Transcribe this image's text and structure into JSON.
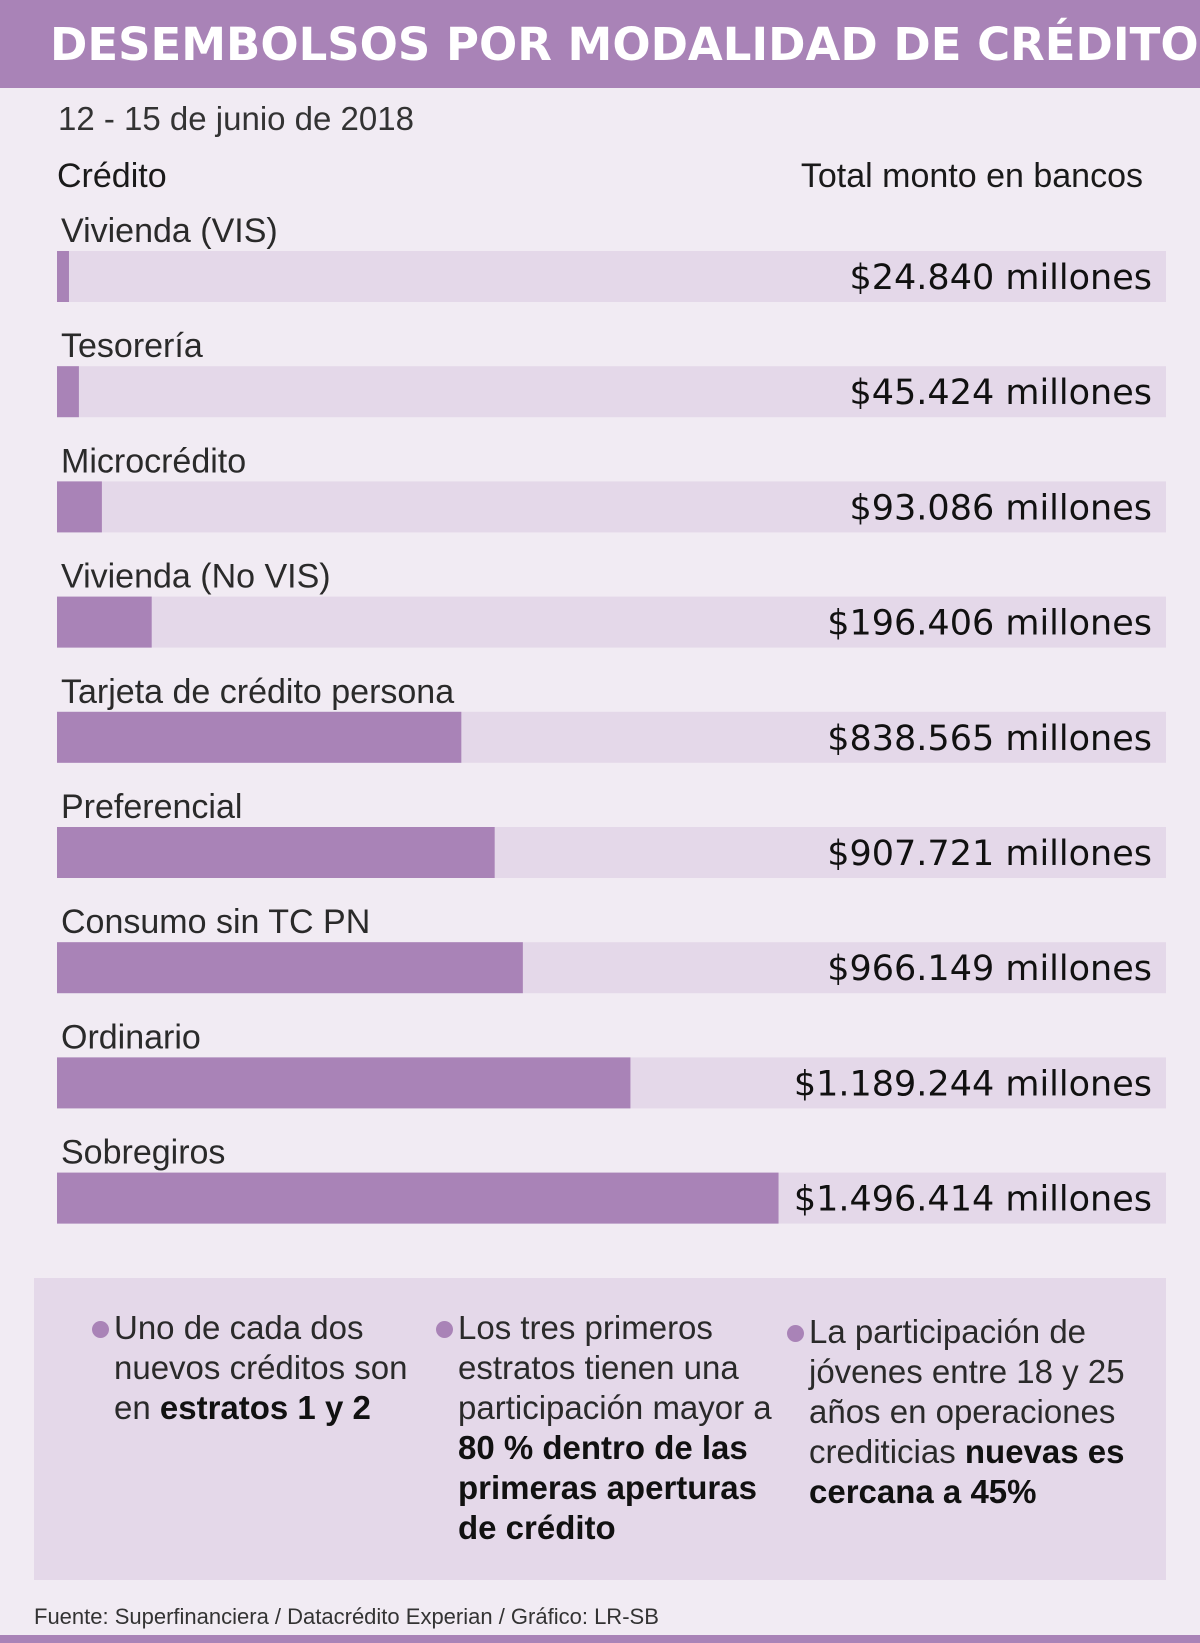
{
  "header": {
    "title": "DESEMBOLSOS POR MODALIDAD DE CRÉDITO"
  },
  "subtitle": "12 - 15 de junio de 2018",
  "columns": {
    "left": "Crédito",
    "right": "Total monto en bancos"
  },
  "colors": {
    "bar": "#a983b7",
    "track": "#e4d8e9",
    "header": "#a983b7"
  },
  "chart_data": {
    "type": "bar",
    "orientation": "horizontal",
    "categories": [
      "Vivienda (VIS)",
      "Tesorería",
      "Microcrédito",
      "Vivienda (No VIS)",
      "Tarjeta de crédito persona",
      "Preferencial",
      "Consumo sin TC PN",
      "Ordinario",
      "Sobregiros"
    ],
    "values": [
      24840,
      45424,
      93086,
      196406,
      838565,
      907721,
      966149,
      1189244,
      1496414
    ],
    "value_labels": [
      "$24.840 millones",
      "$45.424 millones",
      "$93.086 millones",
      "$196.406 millones",
      "$838.565 millones",
      "$907.721 millones",
      "$966.149 millones",
      "$1.189.244 millones",
      "$1.496.414 millones"
    ],
    "xlim": [
      0,
      2300000
    ]
  },
  "notes": [
    {
      "text": "Uno de cada dos nuevos créditos son en ",
      "bold": "estratos 1 y 2"
    },
    {
      "text": "Los tres primeros estratos tienen una participación mayor a ",
      "bold": "80 % dentro de las primeras aperturas de crédito"
    },
    {
      "text": "La participación de jóvenes entre 18 y 25 años en operaciones crediticias ",
      "bold": "nuevas es cercana a 45%"
    }
  ],
  "source": "Fuente: Superfinanciera / Datacrédito Experian / Gráfico: LR-SB"
}
